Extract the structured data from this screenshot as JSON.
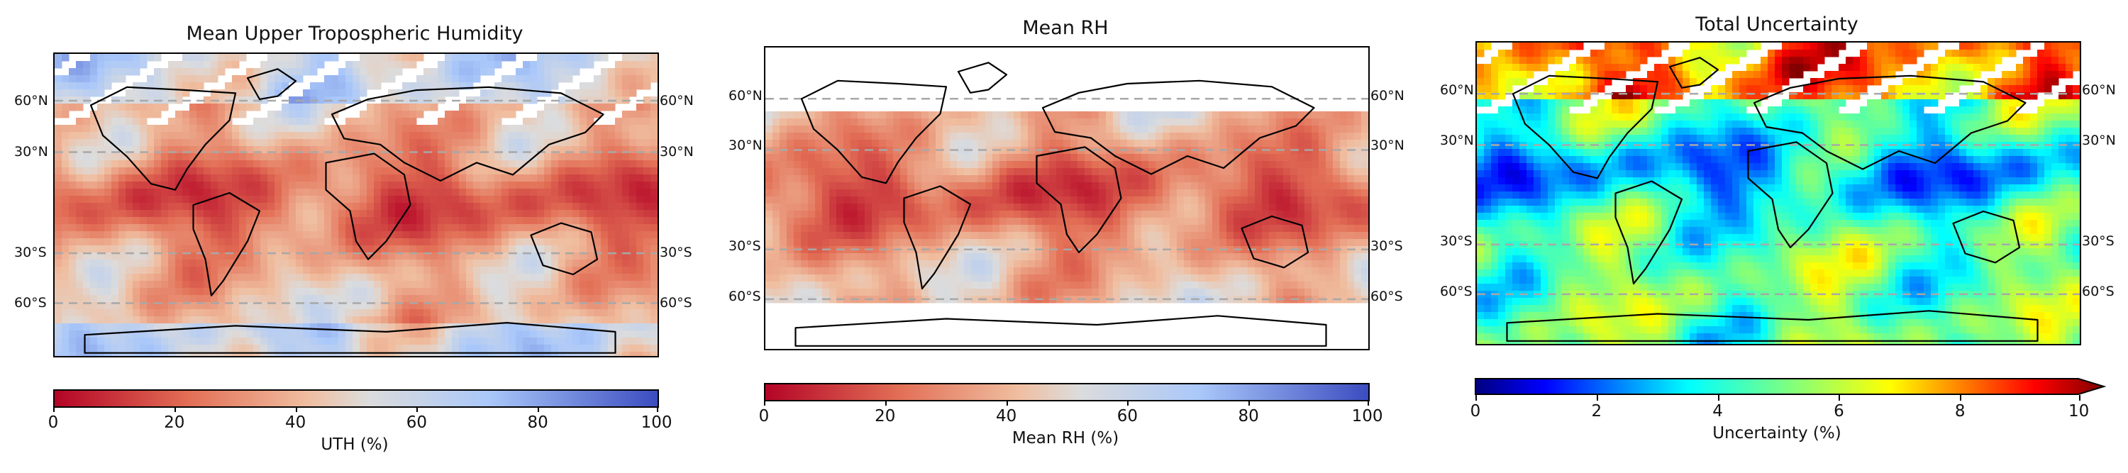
{
  "panels": [
    {
      "title": "Mean Upper Tropospheric Humidity",
      "lat_labels": [
        "60°N",
        "30°N",
        "30°S",
        "60°S"
      ],
      "colorbar": {
        "label": "UTH (%)",
        "ticks": [
          "0",
          "20",
          "40",
          "60",
          "80",
          "100"
        ],
        "colormap": "coolwarm_r",
        "extend": "none"
      }
    },
    {
      "title": "Mean RH",
      "lat_labels": [
        "60°N",
        "30°N",
        "30°S",
        "60°S"
      ],
      "colorbar": {
        "label": "Mean RH (%)",
        "ticks": [
          "0",
          "20",
          "40",
          "60",
          "80",
          "100"
        ],
        "colormap": "coolwarm_r",
        "extend": "none"
      }
    },
    {
      "title": "Total Uncertainty",
      "lat_labels": [
        "60°N",
        "30°N",
        "30°S",
        "60°S"
      ],
      "colorbar": {
        "label": "Uncertainty (%)",
        "ticks": [
          "0",
          "2",
          "4",
          "6",
          "8",
          "10"
        ],
        "colormap": "jet",
        "extend": "max"
      }
    }
  ],
  "colors": {
    "gridline": "#a8a8a8",
    "coastline": "#000000",
    "dry_red": "#b40426",
    "moist_blue": "#3b4cc0",
    "neutral": "#dddcdc"
  }
}
